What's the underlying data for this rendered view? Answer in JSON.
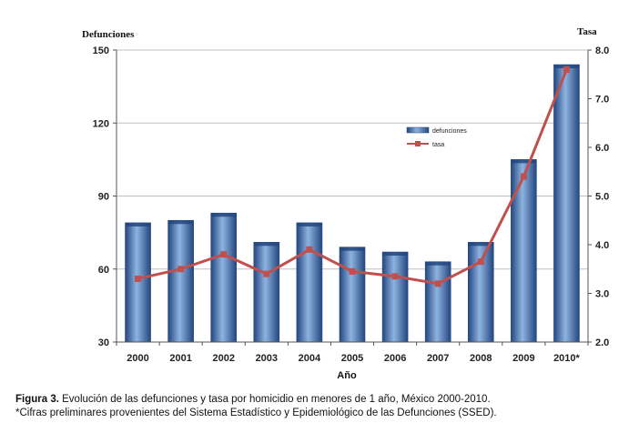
{
  "chart_data": {
    "type": "bar",
    "categories": [
      "2000",
      "2001",
      "2002",
      "2003",
      "2004",
      "2005",
      "2006",
      "2007",
      "2008",
      "2009",
      "2010*"
    ],
    "series": [
      {
        "name": "defunciones",
        "type": "bar",
        "axis": "left",
        "values": [
          79,
          80,
          83,
          71,
          79,
          69,
          67,
          63,
          71,
          105,
          144
        ]
      },
      {
        "name": "tasa",
        "type": "line",
        "axis": "right",
        "values": [
          3.3,
          3.5,
          3.8,
          3.4,
          3.9,
          3.45,
          3.35,
          3.2,
          3.65,
          5.4,
          7.6
        ]
      }
    ],
    "xlabel": "Año",
    "ylabel": "Defunciones",
    "y2label": "Tasa",
    "ylim": [
      30,
      150
    ],
    "y2lim": [
      2.0,
      8.0
    ],
    "yticks": [
      "30",
      "60",
      "90",
      "120",
      "150"
    ],
    "y2ticks": [
      "2.0",
      "3.0",
      "4.0",
      "5.0",
      "6.0",
      "7.0",
      "8.0"
    ],
    "legend_position": "center-right",
    "colors": {
      "bar": "#3f6fb0",
      "bar_dark": "#23477f",
      "bar_light": "#8fb3e0",
      "line": "#c0504d"
    }
  },
  "caption": {
    "figure_label": "Figura 3.",
    "text": " Evolución de las defunciones y tasa por homicidio en menores de 1 año, México 2000-2010.",
    "note": "*Cifras preliminares provenientes del Sistema Estadístico y Epidemiológico de las Defunciones (SSED)."
  }
}
